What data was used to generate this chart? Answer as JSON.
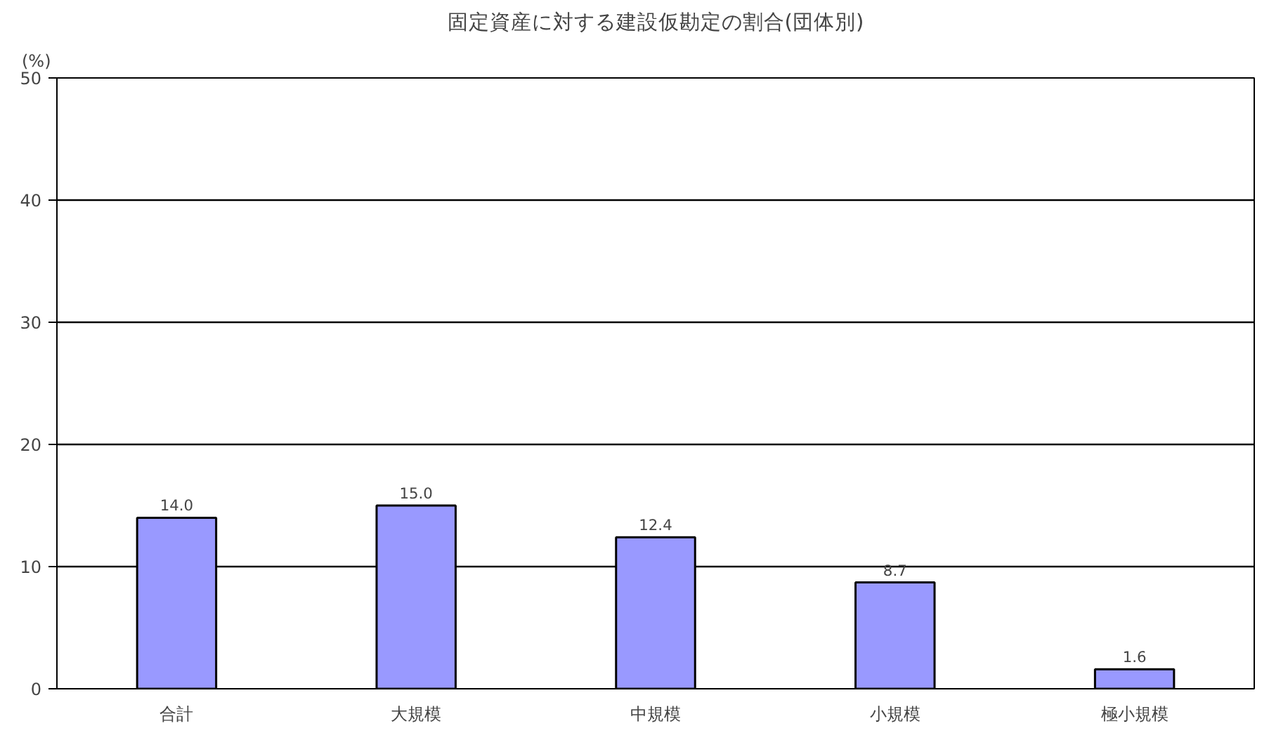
{
  "chart_data": {
    "type": "bar",
    "title": "固定資産に対する建設仮勘定の割合(団体別)",
    "ylabel": "(%)",
    "categories": [
      "合計",
      "大規模",
      "中規模",
      "小規模",
      "極小規模"
    ],
    "values": [
      14.0,
      15.0,
      12.4,
      8.7,
      1.6
    ],
    "color": "#9999ff",
    "value_labels": [
      "14.0",
      "15.0",
      "12.4",
      "8.7",
      "1.6"
    ],
    "ylim": [
      0,
      50
    ],
    "yticks": [
      0,
      10,
      20,
      30,
      40,
      50
    ],
    "grid": "y"
  }
}
